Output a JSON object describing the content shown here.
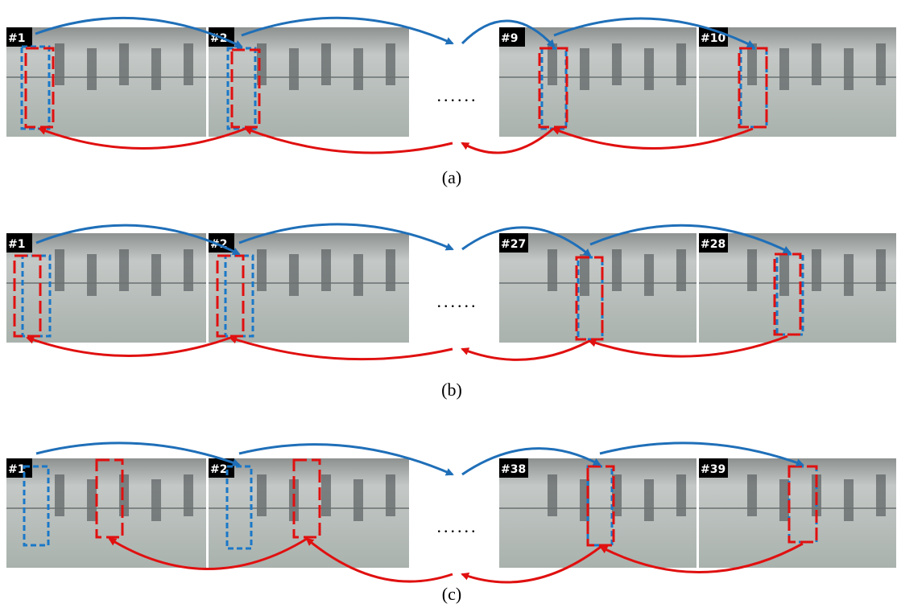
{
  "figure": {
    "rows": [
      {
        "frames": [
          "#1",
          "#2",
          "#9",
          "#10"
        ],
        "ellipsis": "......",
        "caption": "(a)"
      },
      {
        "frames": [
          "#1",
          "#2",
          "#27",
          "#28"
        ],
        "ellipsis": "......",
        "caption": "(b)"
      },
      {
        "frames": [
          "#1",
          "#2",
          "#38",
          "#39"
        ],
        "ellipsis": "......",
        "caption": "(c)"
      }
    ]
  }
}
